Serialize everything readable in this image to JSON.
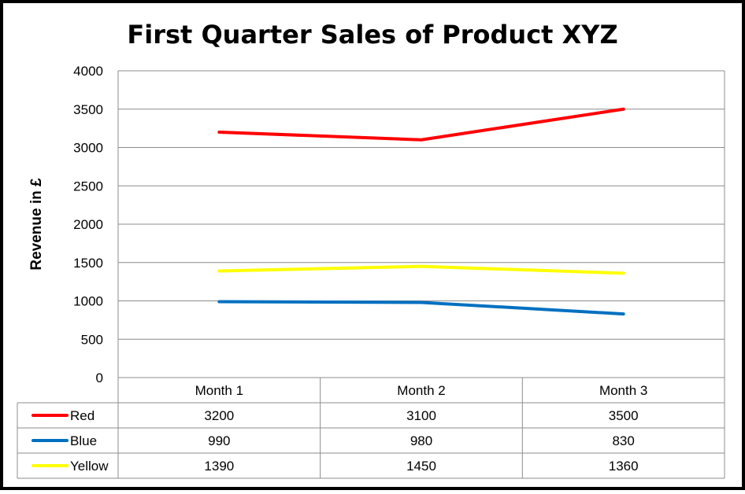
{
  "chart_data": {
    "type": "line",
    "title": "First Quarter Sales of Product XYZ",
    "xlabel": "",
    "ylabel": "Revenue in £",
    "categories": [
      "Month 1",
      "Month 2",
      "Month 3"
    ],
    "ylim": [
      0,
      4000
    ],
    "yticks": [
      "0",
      "500",
      "1000",
      "1500",
      "2000",
      "2500",
      "3000",
      "3500",
      "4000"
    ],
    "grid": true,
    "legend": "data-table",
    "series": [
      {
        "name": "Red",
        "color": "#ff0000",
        "values": [
          3200,
          3100,
          3500
        ],
        "labels": [
          "3200",
          "3100",
          "3500"
        ]
      },
      {
        "name": "Blue",
        "color": "#0070c0",
        "values": [
          990,
          980,
          830
        ],
        "labels": [
          "990",
          "980",
          "830"
        ]
      },
      {
        "name": "Yellow",
        "color": "#ffff00",
        "values": [
          1390,
          1450,
          1360
        ],
        "labels": [
          "1390",
          "1450",
          "1360"
        ]
      }
    ]
  }
}
